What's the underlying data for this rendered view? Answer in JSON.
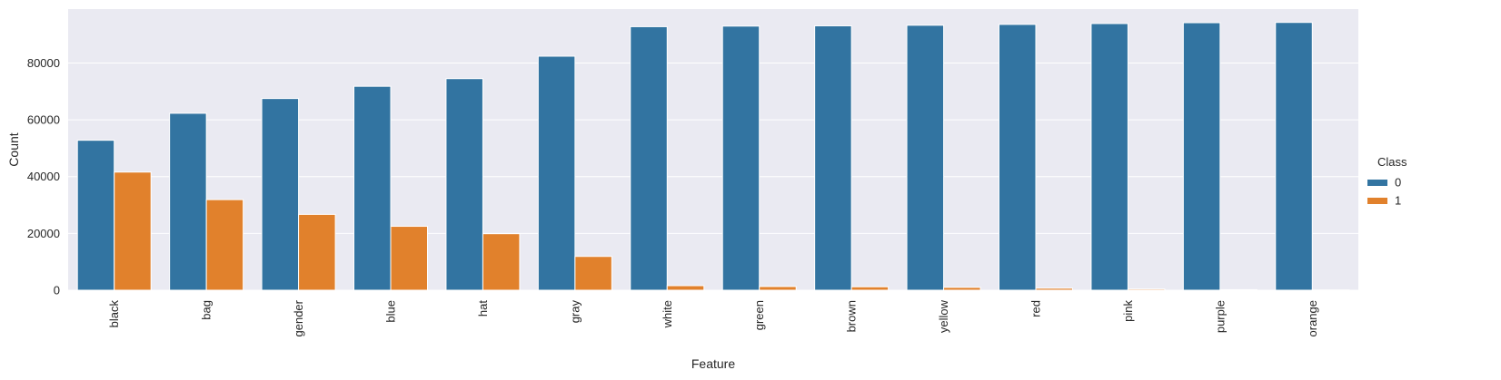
{
  "chart_data": {
    "type": "bar",
    "title": "",
    "xlabel": "Feature",
    "ylabel": "Count",
    "categories": [
      "black",
      "bag",
      "gender",
      "blue",
      "hat",
      "gray",
      "white",
      "green",
      "brown",
      "yellow",
      "red",
      "pink",
      "purple",
      "orange"
    ],
    "series": [
      {
        "name": "0",
        "color": "#3274a1",
        "values": [
          52800,
          62300,
          67500,
          71800,
          74500,
          82400,
          92800,
          93000,
          93100,
          93300,
          93600,
          93900,
          94200,
          94300
        ]
      },
      {
        "name": "1",
        "color": "#e1812c",
        "values": [
          41600,
          31900,
          26700,
          22500,
          19900,
          11900,
          1600,
          1300,
          1200,
          1000,
          700,
          400,
          200,
          100
        ]
      }
    ],
    "yticks": [
      0,
      20000,
      40000,
      60000,
      80000
    ],
    "ylim": [
      0,
      99000
    ],
    "grid": true,
    "legend": {
      "title": "Class",
      "placement": "right"
    },
    "background": "#eaeaf2"
  }
}
